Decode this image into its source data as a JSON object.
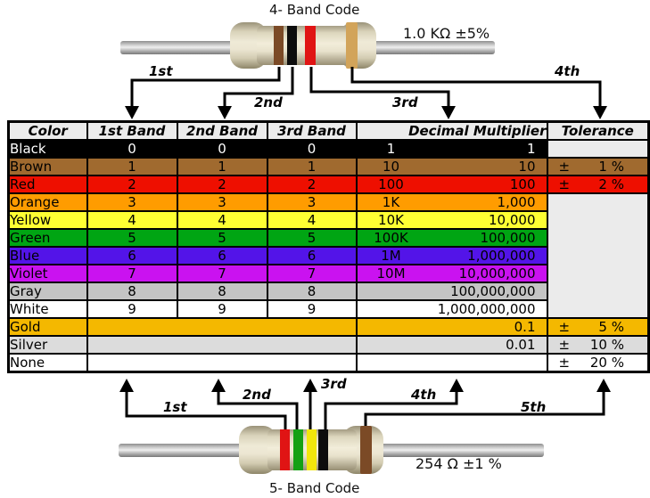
{
  "top_section": {
    "title": "4- Band Code",
    "value_label": "1.0 KΩ  ±5%",
    "arrow_labels": [
      "1st",
      "2nd",
      "3rd",
      "4th"
    ],
    "bands": [
      {
        "name": "brown",
        "color": "#7b4a26"
      },
      {
        "name": "black",
        "color": "#0d0d0d"
      },
      {
        "name": "red",
        "color": "#e01414"
      },
      {
        "name": "gold",
        "color": "#d2a45a"
      }
    ]
  },
  "bottom_section": {
    "title": "5- Band Code",
    "value_label": "254 Ω  ±1 %",
    "arrow_labels": [
      "1st",
      "2nd",
      "3rd",
      "4th",
      "5th"
    ],
    "bands": [
      {
        "name": "red",
        "color": "#e01414"
      },
      {
        "name": "green",
        "color": "#14a014"
      },
      {
        "name": "yellow",
        "color": "#f2e60c"
      },
      {
        "name": "black",
        "color": "#0d0d0d"
      },
      {
        "name": "brown",
        "color": "#7b4a26"
      }
    ]
  },
  "table": {
    "headers": [
      "Color",
      "1st Band",
      "2nd Band",
      "3rd Band",
      "Decimal Multiplier",
      "Tolerance"
    ],
    "empty_cell_color": "#ebebeb",
    "rows": [
      {
        "name": "Black",
        "bg": "#000000",
        "fg": "#ffffff",
        "bands": [
          "0",
          "0",
          "0"
        ],
        "mult_prefix": "1",
        "mult_value": "1",
        "tol_cell": "empty",
        "tol_sign": "",
        "tol_value": ""
      },
      {
        "name": "Brown",
        "bg": "#a06a2f",
        "fg": "#000000",
        "bands": [
          "1",
          "1",
          "1"
        ],
        "mult_prefix": "10",
        "mult_value": "10",
        "tol_cell": "value",
        "tol_sign": "±",
        "tol_value": "1 %"
      },
      {
        "name": "Red",
        "bg": "#ee0f00",
        "fg": "#000000",
        "bands": [
          "2",
          "2",
          "2"
        ],
        "mult_prefix": "100",
        "mult_value": "100",
        "tol_cell": "value",
        "tol_sign": "±",
        "tol_value": "2 %"
      },
      {
        "name": "Orange",
        "bg": "#ff9c00",
        "fg": "#000000",
        "bands": [
          "3",
          "3",
          "3"
        ],
        "mult_prefix": "1K",
        "mult_value": "1,000",
        "tol_cell": "merged",
        "tol_sign": "",
        "tol_value": ""
      },
      {
        "name": "Yellow",
        "bg": "#ffff33",
        "fg": "#000000",
        "bands": [
          "4",
          "4",
          "4"
        ],
        "mult_prefix": "10K",
        "mult_value": "10,000",
        "tol_cell": "none",
        "tol_sign": "",
        "tol_value": ""
      },
      {
        "name": "Green",
        "bg": "#00a513",
        "fg": "#000000",
        "bands": [
          "5",
          "5",
          "5"
        ],
        "mult_prefix": "100K",
        "mult_value": "100,000",
        "tol_cell": "none",
        "tol_sign": "",
        "tol_value": ""
      },
      {
        "name": "Blue",
        "bg": "#5314e8",
        "fg": "#000000",
        "bands": [
          "6",
          "6",
          "6"
        ],
        "mult_prefix": "1M",
        "mult_value": "1,000,000",
        "tol_cell": "none",
        "tol_sign": "",
        "tol_value": ""
      },
      {
        "name": "Violet",
        "bg": "#ca12f0",
        "fg": "#000000",
        "bands": [
          "7",
          "7",
          "7"
        ],
        "mult_prefix": "10M",
        "mult_value": "10,000,000",
        "tol_cell": "none",
        "tol_sign": "",
        "tol_value": ""
      },
      {
        "name": "Gray",
        "bg": "#c4c4c4",
        "fg": "#000000",
        "bands": [
          "8",
          "8",
          "8"
        ],
        "mult_prefix": "",
        "mult_value": "100,000,000",
        "tol_cell": "none",
        "tol_sign": "",
        "tol_value": ""
      },
      {
        "name": "White",
        "bg": "#ffffff",
        "fg": "#000000",
        "bands": [
          "9",
          "9",
          "9"
        ],
        "mult_prefix": "",
        "mult_value": "1,000,000,000",
        "tol_cell": "none",
        "tol_sign": "",
        "tol_value": ""
      },
      {
        "name": "Gold",
        "bg": "#f4b800",
        "fg": "#000000",
        "bands": null,
        "mult_prefix": "",
        "mult_value": "0.1",
        "tol_cell": "value",
        "tol_sign": "±",
        "tol_value": "5 %"
      },
      {
        "name": "Silver",
        "bg": "#dcdcdc",
        "fg": "#000000",
        "bands": null,
        "mult_prefix": "",
        "mult_value": "0.01",
        "tol_cell": "value",
        "tol_sign": "±",
        "tol_value": "10 %"
      },
      {
        "name": "None",
        "bg": "#ffffff",
        "fg": "#000000",
        "bands": null,
        "mult_prefix": "",
        "mult_value": "",
        "tol_cell": "value",
        "tol_sign": "±",
        "tol_value": "20 %"
      }
    ]
  }
}
